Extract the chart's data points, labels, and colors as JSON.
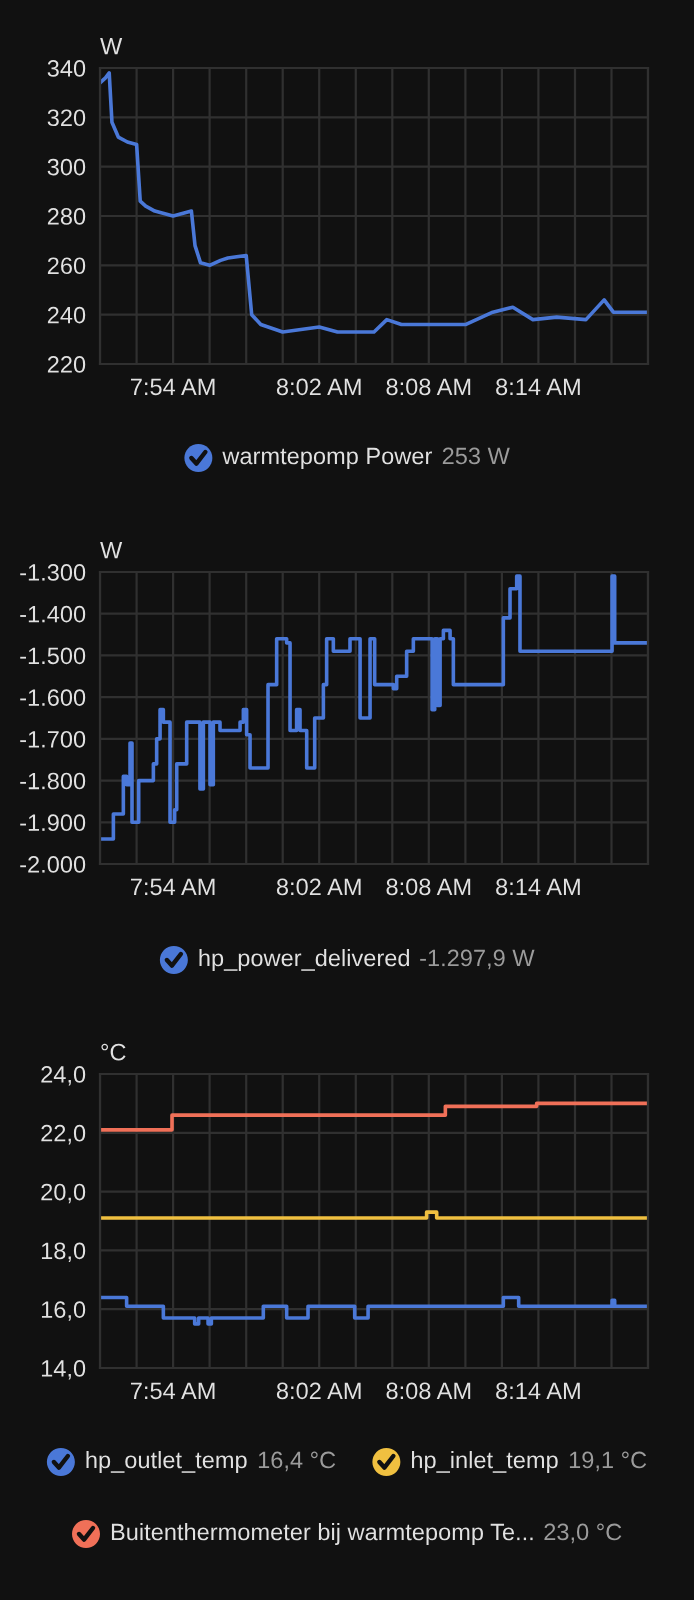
{
  "chart_data": [
    {
      "type": "line",
      "ylabel": "W",
      "xlim": [
        7.8333,
        8.3333
      ],
      "ylim": [
        220,
        340
      ],
      "yticks": [
        220,
        240,
        260,
        280,
        300,
        320,
        340
      ],
      "xticks": [
        {
          "value": 7.8333,
          "label": null
        },
        {
          "value": 7.8667,
          "label": null
        },
        {
          "value": 7.9,
          "label": "7:54 AM"
        },
        {
          "value": 7.9333,
          "label": null
        },
        {
          "value": 7.9667,
          "label": null
        },
        {
          "value": 8.0,
          "label": null
        },
        {
          "value": 8.0333,
          "label": "8:02 AM"
        },
        {
          "value": 8.0667,
          "label": null
        },
        {
          "value": 8.1,
          "label": null
        },
        {
          "value": 8.1333,
          "label": "8:08 AM"
        },
        {
          "value": 8.1667,
          "label": null
        },
        {
          "value": 8.2,
          "label": null
        },
        {
          "value": 8.2333,
          "label": "8:14 AM"
        },
        {
          "value": 8.2667,
          "label": null
        },
        {
          "value": 8.3,
          "label": null
        },
        {
          "value": 8.3333,
          "label": null
        }
      ],
      "grid": true,
      "legend": "bottom",
      "annotations": [
        "253 W"
      ],
      "series": [
        {
          "name": "warmtepomp Power",
          "color": "#4a78d8",
          "x": [
            7.8333,
            7.8383,
            7.8417,
            7.8442,
            7.85,
            7.8583,
            7.8667,
            7.87,
            7.875,
            7.8833,
            7.9,
            7.9167,
            7.92,
            7.925,
            7.9333,
            7.9433,
            7.95,
            7.9667,
            7.9717,
            7.98,
            8.0,
            8.0333,
            8.05,
            8.0833,
            8.095,
            8.1083,
            8.1333,
            8.1667,
            8.1917,
            8.21,
            8.2283,
            8.25,
            8.2767,
            8.2933,
            8.3017,
            8.3333
          ],
          "values": [
            334,
            336,
            338,
            318,
            312,
            310,
            309,
            286,
            284,
            282,
            280,
            282,
            268,
            261,
            260,
            262,
            263,
            264,
            240,
            236,
            233,
            235,
            233,
            233,
            238,
            236,
            236,
            236,
            241,
            243,
            238,
            239,
            238,
            246,
            241,
            241
          ]
        }
      ]
    },
    {
      "type": "step",
      "ylabel": "W",
      "xlim": [
        7.8333,
        8.3333
      ],
      "ylim": [
        -2000,
        -1300
      ],
      "yticks": [
        {
          "value": -2000,
          "label": "-2.000"
        },
        {
          "value": -1900,
          "label": "-1.900"
        },
        {
          "value": -1800,
          "label": "-1.800"
        },
        {
          "value": -1700,
          "label": "-1.700"
        },
        {
          "value": -1600,
          "label": "-1.600"
        },
        {
          "value": -1500,
          "label": "-1.500"
        },
        {
          "value": -1400,
          "label": "-1.400"
        },
        {
          "value": -1300,
          "label": "-1.300"
        }
      ],
      "xticks": [
        {
          "value": 7.8333,
          "label": null
        },
        {
          "value": 7.8667,
          "label": null
        },
        {
          "value": 7.9,
          "label": "7:54 AM"
        },
        {
          "value": 7.9333,
          "label": null
        },
        {
          "value": 7.9667,
          "label": null
        },
        {
          "value": 8.0,
          "label": null
        },
        {
          "value": 8.0333,
          "label": "8:02 AM"
        },
        {
          "value": 8.0667,
          "label": null
        },
        {
          "value": 8.1,
          "label": null
        },
        {
          "value": 8.1333,
          "label": "8:08 AM"
        },
        {
          "value": 8.1667,
          "label": null
        },
        {
          "value": 8.2,
          "label": null
        },
        {
          "value": 8.2333,
          "label": "8:14 AM"
        },
        {
          "value": 8.2667,
          "label": null
        },
        {
          "value": 8.3,
          "label": null
        },
        {
          "value": 8.3333,
          "label": null
        }
      ],
      "grid": true,
      "legend": "bottom",
      "annotations": [
        "-1.297,9 W"
      ],
      "series": [
        {
          "name": "hp_power_delivered",
          "color": "#4a78d8",
          "x": [
            7.8333,
            7.8455,
            7.8546,
            7.8576,
            7.8607,
            7.8625,
            7.8686,
            7.882,
            7.885,
            7.8881,
            7.8911,
            7.8972,
            7.9014,
            7.9033,
            7.9124,
            7.9245,
            7.9276,
            7.9337,
            7.9367,
            7.9428,
            7.9611,
            7.9641,
            7.9671,
            7.9702,
            7.9866,
            7.9945,
            8.0036,
            8.0067,
            8.0127,
            8.0158,
            8.0219,
            8.0292,
            8.0371,
            8.0401,
            8.0462,
            8.0614,
            8.0706,
            8.0797,
            8.0839,
            8.101,
            8.104,
            8.1131,
            8.1192,
            8.1363,
            8.1387,
            8.1411,
            8.1436,
            8.1466,
            8.1527,
            8.1557,
            8.2013,
            8.2074,
            8.2135,
            8.2165,
            8.3005,
            8.3029,
            8.3333
          ],
          "values": [
            -1940,
            -1880,
            -1790,
            -1810,
            -1710,
            -1900,
            -1800,
            -1760,
            -1700,
            -1630,
            -1660,
            -1900,
            -1870,
            -1760,
            -1660,
            -1820,
            -1660,
            -1810,
            -1660,
            -1680,
            -1660,
            -1630,
            -1690,
            -1770,
            -1570,
            -1460,
            -1470,
            -1680,
            -1630,
            -1680,
            -1770,
            -1650,
            -1570,
            -1460,
            -1490,
            -1460,
            -1650,
            -1460,
            -1570,
            -1580,
            -1550,
            -1490,
            -1460,
            -1630,
            -1460,
            -1620,
            -1460,
            -1440,
            -1460,
            -1570,
            -1410,
            -1340,
            -1310,
            -1490,
            -1310,
            -1470,
            -1470
          ]
        }
      ]
    },
    {
      "type": "step",
      "ylabel": "°C",
      "xlim": [
        7.8333,
        8.3333
      ],
      "ylim": [
        14,
        24
      ],
      "yticks": [
        {
          "value": 14,
          "label": "14,0"
        },
        {
          "value": 16,
          "label": "16,0"
        },
        {
          "value": 18,
          "label": "18,0"
        },
        {
          "value": 20,
          "label": "20,0"
        },
        {
          "value": 22,
          "label": "22,0"
        },
        {
          "value": 24,
          "label": "24,0"
        }
      ],
      "xticks": [
        {
          "value": 7.8333,
          "label": null
        },
        {
          "value": 7.8667,
          "label": null
        },
        {
          "value": 7.9,
          "label": "7:54 AM"
        },
        {
          "value": 7.9333,
          "label": null
        },
        {
          "value": 7.9667,
          "label": null
        },
        {
          "value": 8.0,
          "label": null
        },
        {
          "value": 8.0333,
          "label": "8:02 AM"
        },
        {
          "value": 8.0667,
          "label": null
        },
        {
          "value": 8.1,
          "label": null
        },
        {
          "value": 8.1333,
          "label": "8:08 AM"
        },
        {
          "value": 8.1667,
          "label": null
        },
        {
          "value": 8.2,
          "label": null
        },
        {
          "value": 8.2333,
          "label": "8:14 AM"
        },
        {
          "value": 8.2667,
          "label": null
        },
        {
          "value": 8.3,
          "label": null
        },
        {
          "value": 8.3333,
          "label": null
        }
      ],
      "grid": true,
      "legend": "bottom",
      "annotations": [
        "16,4 °C",
        "19,1 °C",
        "23,0 °C"
      ],
      "series": [
        {
          "name": "hp_outlet_temp",
          "color": "#4a78d8",
          "x": [
            7.8333,
            7.8576,
            7.8911,
            7.9197,
            7.9233,
            7.9319,
            7.9349,
            7.9823,
            8.0036,
            8.0231,
            8.0657,
            8.0779,
            8.2013,
            8.2153,
            8.3005,
            8.3029,
            8.3333
          ],
          "values": [
            16.4,
            16.1,
            15.7,
            15.5,
            15.7,
            15.5,
            15.7,
            16.1,
            15.7,
            16.1,
            15.7,
            16.1,
            16.4,
            16.1,
            16.3,
            16.1,
            16.1
          ]
        },
        {
          "name": "hp_inlet_temp",
          "color": "#f0c040",
          "x": [
            7.8333,
            8.1313,
            8.1405,
            8.3333
          ],
          "values": [
            19.1,
            19.3,
            19.1,
            19.1
          ]
        },
        {
          "name": "Buitenthermometer bij warmtepomp Te...",
          "color": "#f07058",
          "x": [
            7.8333,
            7.899,
            8.1484,
            8.2317,
            8.3333
          ],
          "values": [
            22.1,
            22.6,
            22.9,
            23.0,
            23.0
          ]
        }
      ]
    }
  ]
}
